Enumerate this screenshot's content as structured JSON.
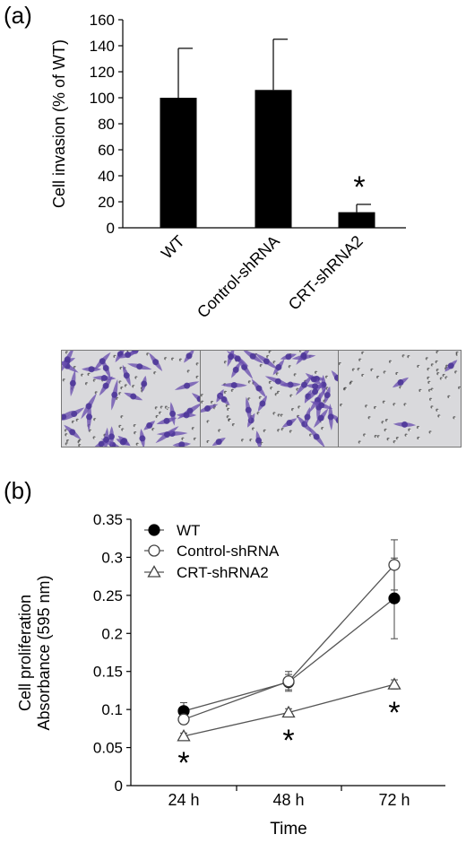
{
  "panels": {
    "a_label": "(a)",
    "b_label": "(b)"
  },
  "chart_data": [
    {
      "type": "bar",
      "categories": [
        "WT",
        "Control-shRNA",
        "CRT-shRNA2"
      ],
      "values": [
        100,
        106,
        12
      ],
      "errors": [
        38,
        39,
        6
      ],
      "significance": [
        "",
        "",
        "*"
      ],
      "ylabel": "Cell invasion (% of WT)",
      "xlabel": "",
      "ylim": [
        0,
        160
      ],
      "yticks": [
        "0",
        "20",
        "40",
        "60",
        "80",
        "100",
        "120",
        "140",
        "160"
      ],
      "bar_color": "#000000",
      "grid": false
    },
    {
      "type": "line",
      "categories": [
        "24 h",
        "48 h",
        "72 h"
      ],
      "series": [
        {
          "name": "WT",
          "values": [
            0.098,
            0.136,
            0.246
          ],
          "errors": [
            0.011,
            0.01,
            0.053
          ],
          "marker": "filled-circle"
        },
        {
          "name": "Control-shRNA",
          "values": [
            0.087,
            0.137,
            0.29
          ],
          "errors": [
            0.006,
            0.013,
            0.033
          ],
          "marker": "open-circle"
        },
        {
          "name": "CRT-shRNA2",
          "values": [
            0.065,
            0.096,
            0.133
          ],
          "errors": [
            0.004,
            0.005,
            0.006
          ],
          "marker": "open-triangle"
        }
      ],
      "significance": [
        "*",
        "*",
        "*"
      ],
      "ylabel_lines": [
        "Cell proliferation",
        "Absorbance (595 nm)"
      ],
      "xlabel": "Time",
      "ylim": [
        0,
        0.35
      ],
      "yticks": [
        "0",
        "0.05",
        "0.1",
        "0.15",
        "0.2",
        "0.25",
        "0.3",
        "0.35"
      ],
      "legend_position": "top-left",
      "grid": false
    }
  ],
  "images": [
    {
      "name": "WT",
      "cell_density": "high"
    },
    {
      "name": "Control-shRNA",
      "cell_density": "high"
    },
    {
      "name": "CRT-shRNA2",
      "cell_density": "low"
    }
  ],
  "colors": {
    "stain": "#6a4fb0",
    "membrane": "#d9d9dc"
  }
}
